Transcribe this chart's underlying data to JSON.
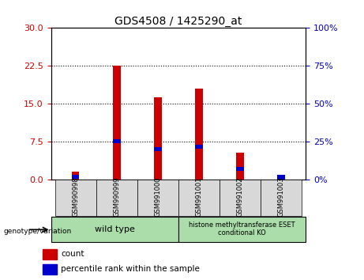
{
  "title": "GDS4508 / 1425290_at",
  "categories": [
    "GSM990998",
    "GSM990999",
    "GSM991000",
    "GSM991001",
    "GSM991002",
    "GSM991003"
  ],
  "red_values": [
    1.5,
    22.5,
    16.2,
    18.0,
    5.2,
    0.8
  ],
  "blue_values_pct": [
    1.5,
    25.0,
    20.0,
    21.5,
    7.0,
    1.0
  ],
  "left_yticks": [
    0,
    7.5,
    15,
    22.5,
    30
  ],
  "right_yticks": [
    0,
    25,
    50,
    75,
    100
  ],
  "ylim_left": [
    0,
    30
  ],
  "ylim_right": [
    0,
    100
  ],
  "red_color": "#cc0000",
  "blue_color": "#0000cc",
  "bg_color": "#ffffff",
  "group1_label": "wild type",
  "group2_label": "histone methyltransferase ESET\nconditional KO",
  "group_bg": "#aaddaa",
  "legend_count": "count",
  "legend_percentile": "percentile rank within the sample",
  "left_label_color": "#cc0000",
  "right_label_color": "#0000bb"
}
